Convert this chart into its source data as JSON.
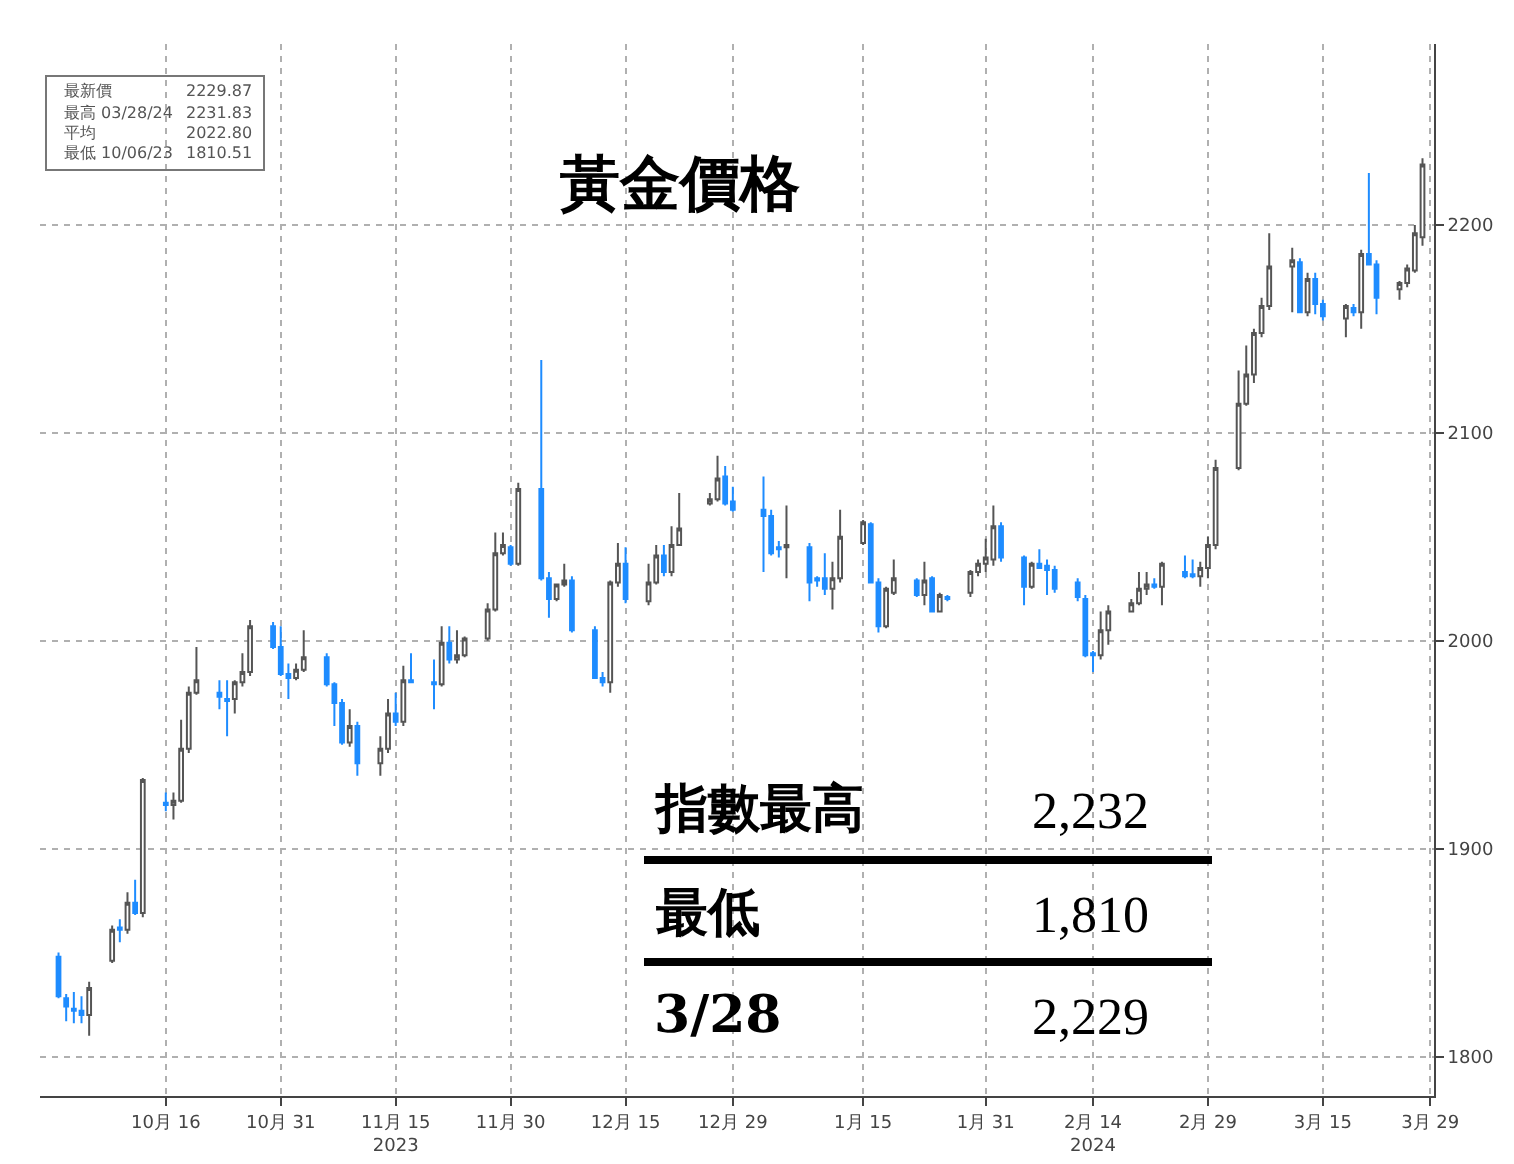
{
  "chart_data": {
    "type": "candlestick",
    "title": "黃金價格",
    "x": [
      "2023-10-02",
      "2023-10-03",
      "2023-10-04",
      "2023-10-05",
      "2023-10-06",
      "2023-10-09",
      "2023-10-10",
      "2023-10-11",
      "2023-10-12",
      "2023-10-13",
      "2023-10-16",
      "2023-10-17",
      "2023-10-18",
      "2023-10-19",
      "2023-10-20",
      "2023-10-23",
      "2023-10-24",
      "2023-10-25",
      "2023-10-26",
      "2023-10-27",
      "2023-10-30",
      "2023-10-31",
      "2023-11-01",
      "2023-11-02",
      "2023-11-03",
      "2023-11-06",
      "2023-11-07",
      "2023-11-08",
      "2023-11-09",
      "2023-11-10",
      "2023-11-13",
      "2023-11-14",
      "2023-11-15",
      "2023-11-16",
      "2023-11-17",
      "2023-11-20",
      "2023-11-21",
      "2023-11-22",
      "2023-11-23",
      "2023-11-24",
      "2023-11-27",
      "2023-11-28",
      "2023-11-29",
      "2023-11-30",
      "2023-12-01",
      "2023-12-04",
      "2023-12-05",
      "2023-12-06",
      "2023-12-07",
      "2023-12-08",
      "2023-12-11",
      "2023-12-12",
      "2023-12-13",
      "2023-12-14",
      "2023-12-15",
      "2023-12-18",
      "2023-12-19",
      "2023-12-20",
      "2023-12-21",
      "2023-12-22",
      "2023-12-26",
      "2023-12-27",
      "2023-12-28",
      "2023-12-29",
      "2024-01-02",
      "2024-01-03",
      "2024-01-04",
      "2024-01-05",
      "2024-01-08",
      "2024-01-09",
      "2024-01-10",
      "2024-01-11",
      "2024-01-12",
      "2024-01-15",
      "2024-01-16",
      "2024-01-17",
      "2024-01-18",
      "2024-01-19",
      "2024-01-22",
      "2024-01-23",
      "2024-01-24",
      "2024-01-25",
      "2024-01-26",
      "2024-01-29",
      "2024-01-30",
      "2024-01-31",
      "2024-02-01",
      "2024-02-02",
      "2024-02-05",
      "2024-02-06",
      "2024-02-07",
      "2024-02-08",
      "2024-02-09",
      "2024-02-12",
      "2024-02-13",
      "2024-02-14",
      "2024-02-15",
      "2024-02-16",
      "2024-02-19",
      "2024-02-20",
      "2024-02-21",
      "2024-02-22",
      "2024-02-23",
      "2024-02-26",
      "2024-02-27",
      "2024-02-28",
      "2024-02-29",
      "2024-03-01",
      "2024-03-04",
      "2024-03-05",
      "2024-03-06",
      "2024-03-07",
      "2024-03-08",
      "2024-03-11",
      "2024-03-12",
      "2024-03-13",
      "2024-03-14",
      "2024-03-15",
      "2024-03-18",
      "2024-03-19",
      "2024-03-20",
      "2024-03-21",
      "2024-03-22",
      "2024-03-25",
      "2024-03-26",
      "2024-03-27",
      "2024-03-28"
    ],
    "ohlc": [
      [
        1848,
        1850,
        1828,
        1829
      ],
      [
        1828,
        1830,
        1817,
        1824
      ],
      [
        1823,
        1831,
        1816,
        1822
      ],
      [
        1822,
        1829,
        1816,
        1820
      ],
      [
        1820,
        1836,
        1810,
        1833
      ],
      [
        1846,
        1863,
        1845,
        1861
      ],
      [
        1862,
        1866,
        1855,
        1861
      ],
      [
        1861,
        1879,
        1859,
        1874
      ],
      [
        1874,
        1885,
        1868,
        1869
      ],
      [
        1869,
        1934,
        1867,
        1933
      ],
      [
        1922,
        1927,
        1918,
        1921
      ],
      [
        1921,
        1927,
        1914,
        1923
      ],
      [
        1923,
        1962,
        1922,
        1948
      ],
      [
        1948,
        1978,
        1946,
        1975
      ],
      [
        1975,
        1997,
        1974,
        1981
      ],
      [
        1975,
        1981,
        1967,
        1973
      ],
      [
        1972,
        1981,
        1954,
        1971
      ],
      [
        1972,
        1981,
        1965,
        1980
      ],
      [
        1980,
        1994,
        1978,
        1985
      ],
      [
        1985,
        2010,
        1983,
        2007
      ],
      [
        2007,
        2009,
        1996,
        1997
      ],
      [
        1997,
        2007,
        1983,
        1984
      ],
      [
        1984,
        1989,
        1972,
        1982
      ],
      [
        1982,
        1989,
        1981,
        1986
      ],
      [
        1986,
        2005,
        1985,
        1992
      ],
      [
        1992,
        1994,
        1978,
        1979
      ],
      [
        1979,
        1980,
        1959,
        1970
      ],
      [
        1970,
        1972,
        1950,
        1951
      ],
      [
        1951,
        1967,
        1949,
        1959
      ],
      [
        1959,
        1961,
        1935,
        1941
      ],
      [
        1941,
        1954,
        1935,
        1948
      ],
      [
        1948,
        1972,
        1946,
        1965
      ],
      [
        1965,
        1975,
        1959,
        1961
      ],
      [
        1961,
        1988,
        1959,
        1981
      ],
      [
        1981,
        1994,
        1980,
        1980
      ],
      [
        1980,
        1991,
        1967,
        1979
      ],
      [
        1979,
        2007,
        1978,
        1999
      ],
      [
        1999,
        2007,
        1989,
        1991
      ],
      [
        1991,
        2005,
        1989,
        1993
      ],
      [
        1993,
        2002,
        1992,
        2001
      ],
      [
        2001,
        2018,
        2000,
        2015
      ],
      [
        2015,
        2052,
        2014,
        2042
      ],
      [
        2042,
        2052,
        2041,
        2046
      ],
      [
        2045,
        2046,
        2036,
        2037
      ],
      [
        2037,
        2076,
        2036,
        2073
      ],
      [
        2073,
        2135,
        2029,
        2030
      ],
      [
        2030,
        2033,
        2011,
        2020
      ],
      [
        2020,
        2027,
        2019,
        2027
      ],
      [
        2027,
        2037,
        2026,
        2029
      ],
      [
        2029,
        2031,
        2004,
        2005
      ],
      [
        2005,
        2007,
        1982,
        1982
      ],
      [
        1982,
        1985,
        1978,
        1980
      ],
      [
        1980,
        2029,
        1975,
        2028
      ],
      [
        2028,
        2047,
        2026,
        2037
      ],
      [
        2037,
        2045,
        2018,
        2020
      ],
      [
        2019,
        2037,
        2017,
        2028
      ],
      [
        2028,
        2046,
        2027,
        2041
      ],
      [
        2041,
        2046,
        2031,
        2033
      ],
      [
        2033,
        2055,
        2031,
        2046
      ],
      [
        2046,
        2071,
        2046,
        2054
      ],
      [
        2066,
        2071,
        2065,
        2068
      ],
      [
        2068,
        2089,
        2067,
        2078
      ],
      [
        2079,
        2084,
        2065,
        2066
      ],
      [
        2067,
        2074,
        2062,
        2063
      ],
      [
        2063,
        2079,
        2033,
        2060
      ],
      [
        2060,
        2063,
        2041,
        2042
      ],
      [
        2045,
        2048,
        2040,
        2044
      ],
      [
        2045,
        2065,
        2030,
        2046
      ],
      [
        2045,
        2047,
        2019,
        2028
      ],
      [
        2030,
        2031,
        2026,
        2029
      ],
      [
        2030,
        2042,
        2022,
        2025
      ],
      [
        2025,
        2038,
        2015,
        2030
      ],
      [
        2030,
        2063,
        2028,
        2050
      ],
      [
        2047,
        2058,
        2046,
        2057
      ],
      [
        2056,
        2057,
        2028,
        2028
      ],
      [
        2028,
        2030,
        2004,
        2007
      ],
      [
        2007,
        2026,
        2006,
        2025
      ],
      [
        2023,
        2039,
        2022,
        2030
      ],
      [
        2029,
        2030,
        2021,
        2022
      ],
      [
        2022,
        2038,
        2017,
        2029
      ],
      [
        2030,
        2031,
        2014,
        2014
      ],
      [
        2014,
        2023,
        2014,
        2022
      ],
      [
        2021,
        2022,
        2019,
        2020
      ],
      [
        2023,
        2034,
        2021,
        2033
      ],
      [
        2033,
        2039,
        2031,
        2037
      ],
      [
        2037,
        2049,
        2033,
        2040
      ],
      [
        2039,
        2065,
        2036,
        2055
      ],
      [
        2055,
        2057,
        2038,
        2040
      ],
      [
        2040,
        2041,
        2017,
        2026
      ],
      [
        2026,
        2038,
        2025,
        2037
      ],
      [
        2037,
        2044,
        2035,
        2035
      ],
      [
        2036,
        2039,
        2022,
        2034
      ],
      [
        2034,
        2036,
        2023,
        2025
      ],
      [
        2028,
        2030,
        2019,
        2021
      ],
      [
        2020,
        2022,
        1992,
        1993
      ],
      [
        1994,
        1995,
        1985,
        1993
      ],
      [
        1993,
        2014,
        1991,
        2005
      ],
      [
        2005,
        2017,
        1998,
        2014
      ],
      [
        2014,
        2020,
        2014,
        2018
      ],
      [
        2018,
        2033,
        2017,
        2025
      ],
      [
        2025,
        2033,
        2022,
        2027
      ],
      [
        2027,
        2030,
        2025,
        2026
      ],
      [
        2026,
        2038,
        2017,
        2037
      ],
      [
        2033,
        2041,
        2030,
        2031
      ],
      [
        2032,
        2039,
        2030,
        2031
      ],
      [
        2031,
        2038,
        2026,
        2035
      ],
      [
        2035,
        2050,
        2030,
        2046
      ],
      [
        2046,
        2087,
        2044,
        2083
      ],
      [
        2083,
        2130,
        2082,
        2114
      ],
      [
        2114,
        2142,
        2113,
        2128
      ],
      [
        2128,
        2150,
        2124,
        2148
      ],
      [
        2148,
        2165,
        2146,
        2161
      ],
      [
        2161,
        2196,
        2159,
        2180
      ],
      [
        2180,
        2189,
        2158,
        2183
      ],
      [
        2182,
        2184,
        2158,
        2158
      ],
      [
        2158,
        2177,
        2156,
        2174
      ],
      [
        2174,
        2177,
        2157,
        2162
      ],
      [
        2162,
        2164,
        2154,
        2156
      ],
      [
        2155,
        2162,
        2146,
        2161
      ],
      [
        2160,
        2162,
        2156,
        2158
      ],
      [
        2158,
        2188,
        2150,
        2186
      ],
      [
        2186,
        2225,
        2181,
        2181
      ],
      [
        2181,
        2183,
        2157,
        2165
      ],
      [
        2169,
        2173,
        2164,
        2172
      ],
      [
        2172,
        2181,
        2170,
        2179
      ],
      [
        2178,
        2200,
        2177,
        2196
      ],
      [
        2194,
        2232,
        2190,
        2229
      ]
    ],
    "xlim": [
      "2023-09-29T14:00",
      "2024-03-29T12:00"
    ],
    "xticks": [
      {
        "value": "2023-10-16",
        "label": "10月 16"
      },
      {
        "value": "2023-10-31",
        "label": "10月 31"
      },
      {
        "value": "2023-11-15",
        "label": "11月 15\n2023"
      },
      {
        "value": "2023-11-30",
        "label": "11月 30"
      },
      {
        "value": "2023-12-15",
        "label": "12月 15"
      },
      {
        "value": "2023-12-29",
        "label": "12月 29"
      },
      {
        "value": "2024-01-15",
        "label": "1月 15"
      },
      {
        "value": "2024-01-31",
        "label": "1月 31"
      },
      {
        "value": "2024-02-14",
        "label": "2月 14\n2024"
      },
      {
        "value": "2024-02-29",
        "label": "2月 29"
      },
      {
        "value": "2024-03-15",
        "label": "3月 15"
      },
      {
        "value": "2024-03-29",
        "label": "3月 29"
      }
    ],
    "ylim": [
      1781,
      2287
    ],
    "yticks": [
      1800,
      1900,
      2000,
      2100,
      2200
    ],
    "grid": true,
    "annotations": [
      "最新價",
      "2229.87",
      "最高 03/28/24",
      "2231.83",
      "平均",
      "2022.80",
      "最低 10/06/23",
      "1810.51",
      "指數最高",
      "2,232",
      "最低",
      "1,810",
      "3/28",
      "2,229"
    ]
  }
}
